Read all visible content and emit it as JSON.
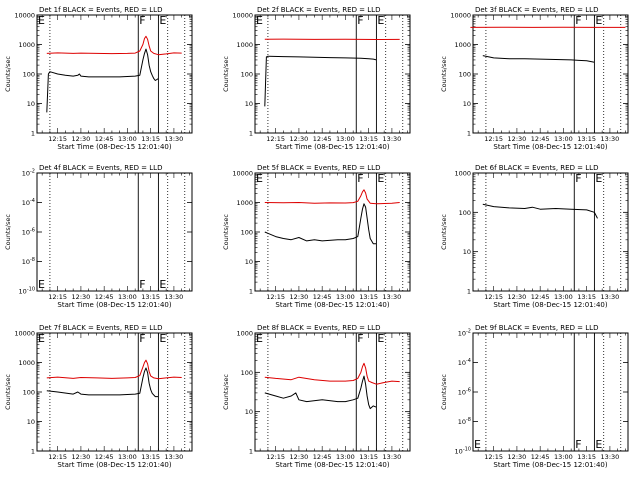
{
  "colors": {
    "events": "#000000",
    "lld": "#dd0000",
    "background": "#ffffff"
  },
  "shared": {
    "xlabel": "Start Time (08-Dec-15 12:01:40)",
    "ylabel": "Counts/sec",
    "xtick_labels": [
      "12:15",
      "12:30",
      "12:45",
      "13:00",
      "13:15",
      "13:30"
    ],
    "flag_F": "F",
    "flag_E": "E"
  },
  "chart_data": [
    {
      "type": "line",
      "title": "Det 1f BLACK = Events, RED = LLD",
      "yscale": "log",
      "ylim": [
        1,
        10000
      ],
      "ytick_labels": [
        "1",
        "10",
        "100",
        "1000",
        "10000"
      ],
      "flags_top": true,
      "flags_bottom": false,
      "e_left": true,
      "series": [
        {
          "key": "events",
          "x": [
            "12:08",
            "12:09",
            "12:10",
            "12:15",
            "12:20",
            "12:25",
            "12:28",
            "12:29",
            "12:30",
            "12:35",
            "12:45",
            "12:55",
            "13:00",
            "13:05",
            "13:08",
            "13:10",
            "13:11",
            "13:12",
            "13:13",
            "13:14",
            "13:15",
            "13:16",
            "13:17",
            "13:18",
            "13:20"
          ],
          "y": [
            5,
            100,
            120,
            100,
            90,
            85,
            90,
            100,
            85,
            80,
            80,
            80,
            82,
            85,
            90,
            300,
            500,
            700,
            450,
            200,
            120,
            90,
            70,
            60,
            70
          ]
        },
        {
          "key": "lld",
          "x": [
            "12:08",
            "12:15",
            "12:25",
            "12:30",
            "12:40",
            "12:50",
            "13:00",
            "13:05",
            "13:08",
            "13:10",
            "13:11",
            "13:12",
            "13:13",
            "13:14",
            "13:15",
            "13:17",
            "13:20",
            "13:25",
            "13:30",
            "13:35"
          ],
          "y": [
            500,
            520,
            500,
            510,
            500,
            490,
            500,
            510,
            600,
            1000,
            1600,
            1900,
            1500,
            900,
            600,
            500,
            450,
            480,
            520,
            510
          ]
        }
      ]
    },
    {
      "type": "line",
      "title": "Det 2f BLACK = Events, RED = LLD",
      "yscale": "log",
      "ylim": [
        1,
        10000
      ],
      "ytick_labels": [
        "1",
        "10",
        "100",
        "1000",
        "10000"
      ],
      "flags_top": true,
      "flags_bottom": false,
      "e_left": true,
      "series": [
        {
          "key": "events",
          "x": [
            "12:08",
            "12:09",
            "12:10",
            "12:20",
            "12:30",
            "12:40",
            "12:50",
            "13:00",
            "13:10",
            "13:15",
            "13:18",
            "13:20"
          ],
          "y": [
            8,
            380,
            400,
            390,
            380,
            370,
            360,
            350,
            340,
            330,
            320,
            300
          ]
        },
        {
          "key": "lld",
          "x": [
            "12:08",
            "12:20",
            "12:40",
            "13:00",
            "13:20",
            "13:35"
          ],
          "y": [
            1500,
            1520,
            1490,
            1500,
            1480,
            1490
          ]
        }
      ]
    },
    {
      "type": "line",
      "title": "Det 3f BLACK = Events, RED = LLD",
      "yscale": "log",
      "ylim": [
        1,
        10000
      ],
      "ytick_labels": [
        "1",
        "10",
        "100",
        "1000",
        "10000"
      ],
      "flags_top": true,
      "flags_bottom": false,
      "e_left": false,
      "series": [
        {
          "key": "events",
          "x": [
            "12:08",
            "12:15",
            "12:25",
            "12:35",
            "12:45",
            "12:55",
            "13:05",
            "13:10",
            "13:15",
            "13:20"
          ],
          "y": [
            420,
            350,
            330,
            330,
            320,
            310,
            300,
            290,
            280,
            250
          ]
        },
        {
          "key": "lld",
          "x": [
            "12:00",
            "12:20",
            "12:40",
            "13:00",
            "13:20",
            "13:40"
          ],
          "y": [
            3800,
            3850,
            3800,
            3820,
            3800,
            3810
          ]
        }
      ]
    },
    {
      "type": "line",
      "title": "Det 4f BLACK = Events, RED = LLD",
      "yscale": "log",
      "ylim": [
        1e-10,
        0.01
      ],
      "ytick_labels": [
        "10^-10",
        "10^-8",
        "10^-6",
        "10^-4",
        "10^-2"
      ],
      "flags_top": false,
      "flags_bottom": true,
      "e_left": true,
      "series": []
    },
    {
      "type": "line",
      "title": "Det 5f BLACK = Events, RED = LLD",
      "yscale": "log",
      "ylim": [
        1,
        10000
      ],
      "ytick_labels": [
        "1",
        "10",
        "100",
        "1000",
        "10000"
      ],
      "flags_top": true,
      "flags_bottom": false,
      "e_left": true,
      "series": [
        {
          "key": "events",
          "x": [
            "12:08",
            "12:10",
            "12:15",
            "12:20",
            "12:25",
            "12:30",
            "12:35",
            "12:40",
            "12:45",
            "12:55",
            "13:00",
            "13:05",
            "13:08",
            "13:10",
            "13:11",
            "13:12",
            "13:13",
            "13:14",
            "13:15",
            "13:16",
            "13:18",
            "13:20"
          ],
          "y": [
            100,
            90,
            70,
            60,
            55,
            65,
            50,
            55,
            50,
            55,
            55,
            60,
            70,
            300,
            600,
            900,
            700,
            300,
            120,
            60,
            40,
            40
          ]
        },
        {
          "key": "lld",
          "x": [
            "12:08",
            "12:20",
            "12:30",
            "12:40",
            "12:50",
            "13:00",
            "13:05",
            "13:08",
            "13:10",
            "13:11",
            "13:12",
            "13:13",
            "13:14",
            "13:16",
            "13:20",
            "13:30",
            "13:35"
          ],
          "y": [
            1000,
            980,
            1000,
            950,
            970,
            960,
            990,
            1100,
            1700,
            2300,
            2700,
            2100,
            1300,
            950,
            900,
            950,
            1000
          ]
        }
      ]
    },
    {
      "type": "line",
      "title": "Det 6f BLACK = Events, RED = LLD",
      "yscale": "log",
      "ylim": [
        1,
        1000
      ],
      "ytick_labels": [
        "1",
        "10",
        "100",
        "1000"
      ],
      "flags_top": true,
      "flags_bottom": false,
      "e_left": false,
      "series": [
        {
          "key": "events",
          "x": [
            "12:08",
            "12:15",
            "12:25",
            "12:35",
            "12:40",
            "12:45",
            "12:55",
            "13:05",
            "13:15",
            "13:20",
            "13:22"
          ],
          "y": [
            160,
            140,
            130,
            125,
            135,
            120,
            125,
            120,
            115,
            100,
            70
          ]
        }
      ]
    },
    {
      "type": "line",
      "title": "Det 7f BLACK = Events, RED = LLD",
      "yscale": "log",
      "ylim": [
        1,
        10000
      ],
      "ytick_labels": [
        "1",
        "10",
        "100",
        "1000",
        "10000"
      ],
      "flags_top": true,
      "flags_bottom": false,
      "e_left": true,
      "series": [
        {
          "key": "events",
          "x": [
            "12:08",
            "12:15",
            "12:25",
            "12:28",
            "12:30",
            "12:35",
            "12:45",
            "12:55",
            "13:00",
            "13:05",
            "13:08",
            "13:10",
            "13:11",
            "13:12",
            "13:13",
            "13:14",
            "13:15",
            "13:16",
            "13:18",
            "13:20"
          ],
          "y": [
            110,
            100,
            85,
            100,
            85,
            80,
            80,
            80,
            82,
            85,
            90,
            300,
            500,
            650,
            450,
            200,
            120,
            90,
            70,
            70
          ]
        },
        {
          "key": "lld",
          "x": [
            "12:08",
            "12:15",
            "12:25",
            "12:30",
            "12:40",
            "12:50",
            "13:00",
            "13:05",
            "13:08",
            "13:10",
            "13:11",
            "13:12",
            "13:13",
            "13:14",
            "13:15",
            "13:17",
            "13:20",
            "13:25",
            "13:30",
            "13:35"
          ],
          "y": [
            300,
            320,
            290,
            310,
            300,
            290,
            300,
            310,
            360,
            700,
            1000,
            1200,
            900,
            500,
            350,
            300,
            280,
            300,
            320,
            310
          ]
        }
      ]
    },
    {
      "type": "line",
      "title": "Det 8f BLACK = Events, RED = LLD",
      "yscale": "log",
      "ylim": [
        1,
        1000
      ],
      "ytick_labels": [
        "1",
        "10",
        "100",
        "1000"
      ],
      "flags_top": true,
      "flags_bottom": false,
      "e_left": true,
      "series": [
        {
          "key": "events",
          "x": [
            "12:08",
            "12:15",
            "12:20",
            "12:25",
            "12:28",
            "12:30",
            "12:35",
            "12:45",
            "12:55",
            "13:00",
            "13:05",
            "13:08",
            "13:10",
            "13:11",
            "13:12",
            "13:13",
            "13:14",
            "13:15",
            "13:16",
            "13:18",
            "13:20"
          ],
          "y": [
            30,
            25,
            22,
            25,
            30,
            20,
            18,
            20,
            18,
            18,
            20,
            22,
            40,
            60,
            80,
            50,
            25,
            15,
            12,
            14,
            13
          ]
        },
        {
          "key": "lld",
          "x": [
            "12:08",
            "12:15",
            "12:25",
            "12:30",
            "12:40",
            "12:50",
            "13:00",
            "13:05",
            "13:08",
            "13:10",
            "13:11",
            "13:12",
            "13:13",
            "13:14",
            "13:15",
            "13:17",
            "13:20",
            "13:25",
            "13:30",
            "13:35"
          ],
          "y": [
            75,
            70,
            65,
            75,
            65,
            60,
            60,
            62,
            70,
            100,
            140,
            170,
            130,
            80,
            60,
            55,
            50,
            55,
            60,
            58
          ]
        }
      ]
    },
    {
      "type": "line",
      "title": "Det 9f BLACK = Events, RED = LLD",
      "yscale": "log",
      "ylim": [
        1e-10,
        0.01
      ],
      "ytick_labels": [
        "10^-10",
        "10^-8",
        "10^-6",
        "10^-4",
        "10^-2"
      ],
      "flags_top": false,
      "flags_bottom": true,
      "e_left": true,
      "series": []
    }
  ]
}
